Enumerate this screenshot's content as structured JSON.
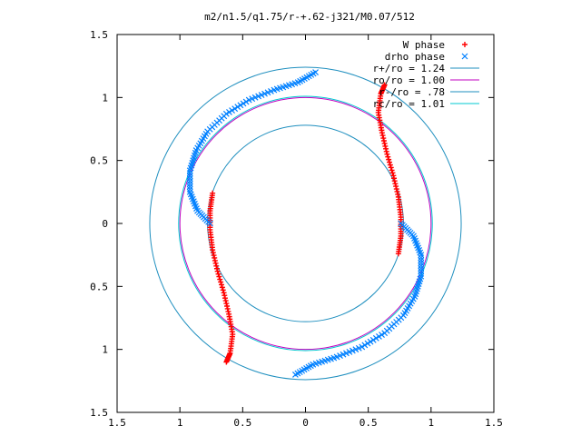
{
  "chart_data": {
    "type": "scatter",
    "title": "m2/n1.5/q1.75/r-+.62-j321/M0.07/512",
    "xlim": [
      -1.5,
      1.5
    ],
    "ylim": [
      -1.5,
      1.5
    ],
    "xticks": [
      -1.5,
      -1,
      -0.5,
      0,
      0.5,
      1,
      1.5
    ],
    "yticks": [
      -1.5,
      -1,
      -0.5,
      0,
      0.5,
      1,
      1.5
    ],
    "xtick_labels": [
      "1.5",
      "1",
      "0.5",
      "0",
      "0.5",
      "1",
      "1.5"
    ],
    "ytick_labels": [
      "1.5",
      "1",
      "0.5",
      "0",
      "0.5",
      "1",
      "1.5"
    ],
    "legend_position": "top-right",
    "grid": false,
    "series": [
      {
        "name": "W phase",
        "marker": "plus",
        "color": "#ff0000",
        "points": [
          [
            0.74,
            -0.24
          ],
          [
            0.76,
            -0.1
          ],
          [
            0.76,
            0.05
          ],
          [
            0.74,
            0.21
          ],
          [
            0.7,
            0.38
          ],
          [
            0.65,
            0.55
          ],
          [
            0.61,
            0.72
          ],
          [
            0.58,
            0.88
          ],
          [
            0.6,
            1.03
          ],
          [
            0.63,
            1.1
          ],
          [
            -0.74,
            0.24
          ],
          [
            -0.76,
            0.1
          ],
          [
            -0.76,
            -0.05
          ],
          [
            -0.74,
            -0.21
          ],
          [
            -0.7,
            -0.38
          ],
          [
            -0.65,
            -0.55
          ],
          [
            -0.61,
            -0.72
          ],
          [
            -0.58,
            -0.88
          ],
          [
            -0.6,
            -1.03
          ],
          [
            -0.63,
            -1.1
          ]
        ]
      },
      {
        "name": "drho phase",
        "marker": "cross",
        "color": "#0080ff",
        "points": [
          [
            0.76,
            0.0
          ],
          [
            0.86,
            -0.1
          ],
          [
            0.92,
            -0.25
          ],
          [
            0.92,
            -0.42
          ],
          [
            0.87,
            -0.58
          ],
          [
            0.78,
            -0.73
          ],
          [
            0.63,
            -0.87
          ],
          [
            0.45,
            -0.98
          ],
          [
            0.25,
            -1.06
          ],
          [
            0.06,
            -1.12
          ],
          [
            -0.08,
            -1.2
          ],
          [
            -0.76,
            0.0
          ],
          [
            -0.86,
            0.1
          ],
          [
            -0.92,
            0.25
          ],
          [
            -0.92,
            0.42
          ],
          [
            -0.87,
            0.58
          ],
          [
            -0.78,
            0.73
          ],
          [
            -0.63,
            0.87
          ],
          [
            -0.45,
            0.98
          ],
          [
            -0.25,
            1.06
          ],
          [
            -0.06,
            1.12
          ],
          [
            0.08,
            1.2
          ]
        ]
      },
      {
        "name": "r+/ro = 1.24",
        "type": "circle",
        "radius": 1.24,
        "color": "#1f8fbf"
      },
      {
        "name": "ro/ro = 1.00",
        "type": "circle",
        "radius": 1.0,
        "color": "#c000c0"
      },
      {
        "name": "r-/ro = .78",
        "type": "circle",
        "radius": 0.78,
        "color": "#1f8fbf"
      },
      {
        "name": "rc/ro = 1.01",
        "type": "circle",
        "radius": 1.01,
        "color": "#00c8d0"
      }
    ]
  }
}
